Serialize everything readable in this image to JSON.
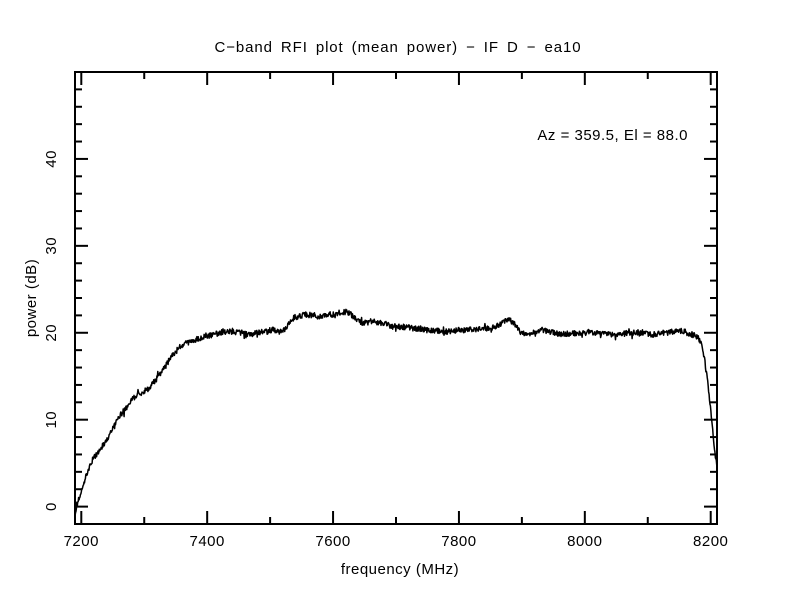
{
  "page": {
    "background": "#ffffff",
    "ink": "#000000"
  },
  "chart_data": {
    "type": "line",
    "title": "C−band RFI plot (mean power) − IF D − ea10",
    "annotation": "Az = 359.5, El = 88.0",
    "xlabel": "frequency (MHz)",
    "ylabel": "power (dB)",
    "xlim": [
      7190,
      8210
    ],
    "ylim": [
      -2,
      50
    ],
    "x_major_ticks": [
      7200,
      7400,
      7600,
      7800,
      8000,
      8200
    ],
    "x_minor_step": 100,
    "y_major_ticks": [
      0,
      10,
      20,
      30,
      40
    ],
    "y_minor_step": 2,
    "grid": false,
    "legend": false,
    "line_color": "#000000",
    "noise_db": 0.32,
    "seed": 12,
    "series_name": "mean power",
    "x": [
      7190,
      7194,
      7198,
      7202,
      7206,
      7210,
      7214,
      7218,
      7222,
      7226,
      7230,
      7234,
      7238,
      7242,
      7246,
      7250,
      7254,
      7258,
      7262,
      7266,
      7270,
      7275,
      7280,
      7285,
      7290,
      7295,
      7300,
      7305,
      7310,
      7315,
      7320,
      7325,
      7330,
      7335,
      7340,
      7345,
      7350,
      7355,
      7360,
      7365,
      7370,
      7375,
      7380,
      7385,
      7390,
      7395,
      7400,
      7405,
      7410,
      7415,
      7420,
      7425,
      7430,
      7435,
      7440,
      7445,
      7450,
      7455,
      7460,
      7465,
      7470,
      7475,
      7480,
      7485,
      7490,
      7495,
      7500,
      7505,
      7510,
      7515,
      7520,
      7525,
      7530,
      7535,
      7540,
      7545,
      7550,
      7555,
      7560,
      7565,
      7570,
      7575,
      7580,
      7585,
      7590,
      7595,
      7600,
      7605,
      7610,
      7615,
      7620,
      7625,
      7630,
      7635,
      7640,
      7645,
      7650,
      7655,
      7660,
      7665,
      7670,
      7675,
      7680,
      7685,
      7690,
      7695,
      7700,
      7710,
      7720,
      7730,
      7740,
      7750,
      7760,
      7770,
      7780,
      7790,
      7800,
      7810,
      7820,
      7830,
      7840,
      7850,
      7860,
      7865,
      7870,
      7875,
      7880,
      7884,
      7888,
      7892,
      7896,
      7900,
      7905,
      7910,
      7915,
      7920,
      7925,
      7930,
      7935,
      7940,
      7945,
      7950,
      7955,
      7960,
      7970,
      7980,
      7990,
      8000,
      8010,
      8020,
      8030,
      8040,
      8050,
      8060,
      8070,
      8080,
      8090,
      8100,
      8110,
      8115,
      8120,
      8125,
      8130,
      8135,
      8140,
      8145,
      8150,
      8155,
      8160,
      8165,
      8170,
      8175,
      8180,
      8184,
      8187,
      8190,
      8193,
      8196,
      8199,
      8202,
      8205,
      8207,
      8209,
      8210
    ],
    "y": [
      -1.0,
      0.3,
      1.3,
      2.3,
      3.2,
      4.1,
      4.8,
      5.4,
      5.8,
      6.2,
      6.6,
      7.0,
      7.4,
      7.9,
      8.4,
      9.0,
      9.6,
      10.1,
      10.5,
      10.9,
      11.2,
      11.7,
      12.2,
      12.6,
      12.9,
      13.1,
      13.3,
      13.5,
      13.8,
      14.3,
      14.8,
      15.3,
      15.8,
      16.3,
      16.9,
      17.4,
      17.8,
      18.2,
      18.5,
      18.7,
      18.9,
      19.1,
      19.2,
      19.3,
      19.4,
      19.6,
      19.7,
      19.7,
      19.8,
      19.9,
      20.0,
      20.1,
      20.1,
      20.2,
      20.2,
      20.1,
      20.0,
      20.0,
      19.9,
      19.8,
      19.8,
      19.9,
      20.0,
      20.1,
      20.2,
      20.1,
      20.3,
      20.4,
      20.2,
      20.1,
      20.2,
      20.5,
      21.0,
      21.5,
      21.8,
      21.9,
      22.0,
      22.1,
      22.1,
      22.0,
      22.0,
      21.9,
      21.9,
      22.0,
      22.0,
      22.1,
      22.1,
      22.2,
      22.3,
      22.4,
      22.4,
      22.3,
      22.0,
      21.7,
      21.4,
      21.2,
      21.1,
      21.2,
      21.3,
      21.3,
      21.2,
      21.1,
      21.1,
      21.0,
      20.9,
      20.8,
      20.8,
      20.7,
      20.6,
      20.5,
      20.4,
      20.3,
      20.3,
      20.2,
      20.2,
      20.2,
      20.3,
      20.3,
      20.4,
      20.4,
      20.5,
      20.6,
      20.8,
      21.0,
      21.2,
      21.4,
      21.5,
      21.3,
      21.0,
      20.6,
      20.2,
      20.0,
      19.8,
      19.8,
      19.9,
      20.1,
      20.2,
      20.3,
      20.3,
      20.2,
      20.1,
      20.0,
      19.9,
      19.8,
      19.9,
      19.9,
      20.0,
      20.0,
      20.1,
      20.0,
      19.9,
      19.8,
      19.9,
      19.9,
      20.0,
      20.0,
      19.9,
      19.9,
      19.8,
      19.9,
      19.9,
      20.0,
      20.0,
      20.1,
      20.1,
      20.2,
      20.2,
      20.2,
      20.1,
      19.9,
      19.8,
      19.7,
      19.4,
      18.9,
      18.2,
      17.0,
      15.5,
      13.8,
      11.8,
      9.5,
      7.3,
      6.0,
      5.0,
      4.6
    ]
  }
}
